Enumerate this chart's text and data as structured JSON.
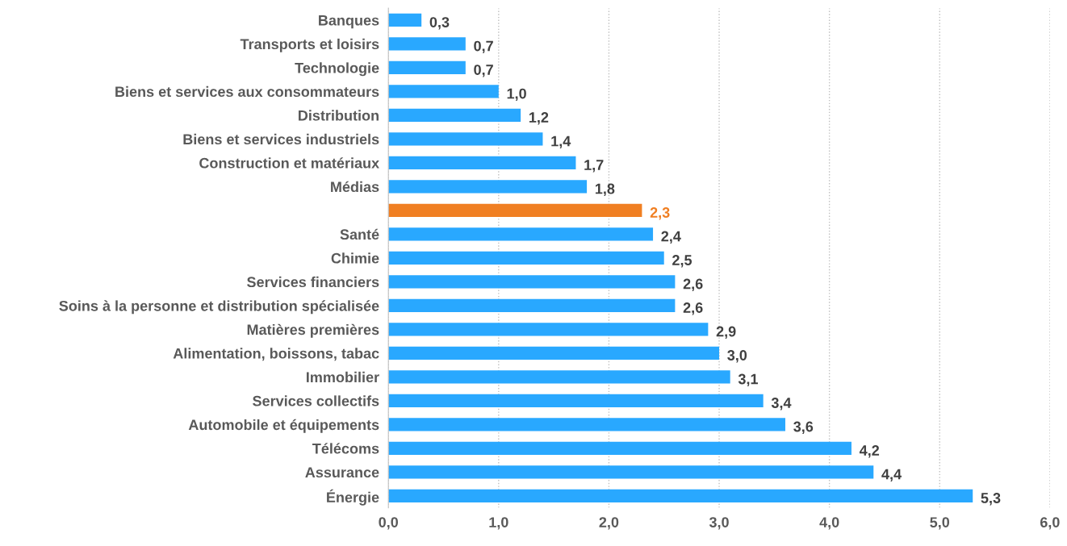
{
  "chart_data": {
    "type": "bar",
    "orientation": "horizontal",
    "categories": [
      "Banques",
      "Transports et loisirs",
      "Technologie",
      "Biens et services aux consommateurs",
      "Distribution",
      "Biens et services industriels",
      "Construction et matériaux",
      "Médias",
      null,
      "Santé",
      "Chimie",
      "Services financiers",
      "Soins à la personne et distribution spécialisée",
      "Matières premières",
      "Alimentation, boissons, tabac",
      "Immobilier",
      "Services collectifs",
      "Automobile et équipements",
      "Télécoms",
      "Assurance",
      "Énergie"
    ],
    "values": [
      0.3,
      0.7,
      0.7,
      1.0,
      1.2,
      1.4,
      1.7,
      1.8,
      2.3,
      2.4,
      2.5,
      2.6,
      2.6,
      2.9,
      3.0,
      3.1,
      3.4,
      3.6,
      4.2,
      4.4,
      5.3
    ],
    "value_labels": [
      "0,3",
      "0,7",
      "0,7",
      "1,0",
      "1,2",
      "1,4",
      "1,7",
      "1,8",
      "2,3",
      "2,4",
      "2,5",
      "2,6",
      "2,6",
      "2,9",
      "3,0",
      "3,1",
      "3,4",
      "3,6",
      "4,2",
      "4,4",
      "5,3"
    ],
    "colors": [
      "#29a8ff",
      "#29a8ff",
      "#29a8ff",
      "#29a8ff",
      "#29a8ff",
      "#29a8ff",
      "#29a8ff",
      "#29a8ff",
      "#f07f22",
      "#29a8ff",
      "#29a8ff",
      "#29a8ff",
      "#29a8ff",
      "#29a8ff",
      "#29a8ff",
      "#29a8ff",
      "#29a8ff",
      "#29a8ff",
      "#29a8ff",
      "#29a8ff",
      "#29a8ff"
    ],
    "xlim": [
      0,
      6
    ],
    "xticks": [
      {
        "value": 0,
        "label": "0,0"
      },
      {
        "value": 1,
        "label": "1,0"
      },
      {
        "value": 2,
        "label": "2,0"
      },
      {
        "value": 3,
        "label": "3,0"
      },
      {
        "value": 4,
        "label": "4,0"
      },
      {
        "value": 5,
        "label": "5,0"
      },
      {
        "value": 6,
        "label": "6,0"
      }
    ],
    "grid": "x"
  }
}
